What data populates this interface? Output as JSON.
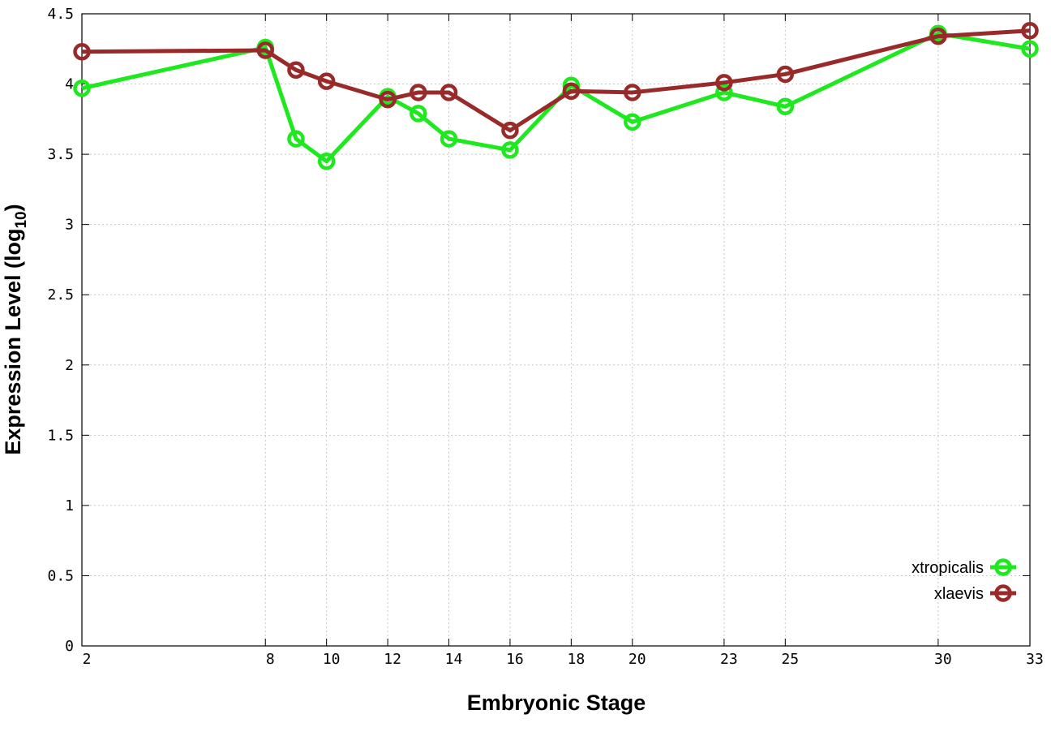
{
  "chart_data": {
    "type": "line",
    "title": "",
    "xlabel": "Embryonic Stage",
    "ylabel_main": "Expression Level (log",
    "ylabel_sub": "10",
    "ylabel_close": ")",
    "xlim": [
      2,
      33
    ],
    "ylim": [
      0,
      4.5
    ],
    "x_ticks": [
      2,
      8,
      10,
      12,
      14,
      16,
      18,
      20,
      23,
      25,
      30,
      33
    ],
    "y_ticks": [
      0,
      0.5,
      1,
      1.5,
      2,
      2.5,
      3,
      3.5,
      4,
      4.5
    ],
    "y_tick_labels": [
      "0",
      "0.5",
      "1",
      "1.5",
      "2",
      "2.5",
      "3",
      "3.5",
      "4",
      "4.5"
    ],
    "grid": true,
    "legend_position": "bottom-right",
    "series": [
      {
        "name": "xtropicalis",
        "color": "#1ee81e",
        "x": [
          2,
          8,
          9,
          10,
          12,
          13,
          14,
          16,
          18,
          20,
          23,
          25,
          30,
          33
        ],
        "y": [
          3.97,
          4.26,
          3.61,
          3.45,
          3.91,
          3.79,
          3.61,
          3.53,
          3.99,
          3.73,
          3.94,
          3.84,
          4.36,
          4.25
        ]
      },
      {
        "name": "xlaevis",
        "color": "#992a2a",
        "x": [
          2,
          8,
          9,
          10,
          12,
          13,
          14,
          16,
          18,
          20,
          23,
          25,
          30,
          33
        ],
        "y": [
          4.23,
          4.24,
          4.1,
          4.02,
          3.89,
          3.94,
          3.94,
          3.67,
          3.95,
          3.94,
          4.01,
          4.07,
          4.34,
          4.38
        ]
      }
    ]
  }
}
